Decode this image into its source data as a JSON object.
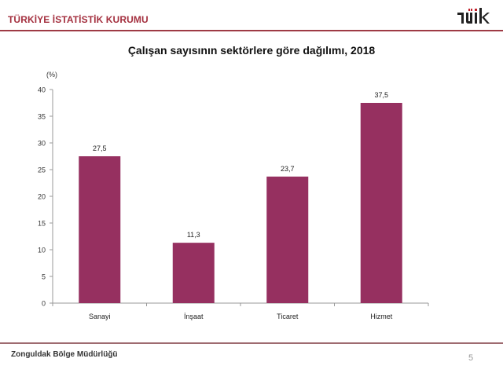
{
  "header": {
    "organization": "TÜRKİYE İSTATİSTİK KURUMU",
    "logo_text": "tüik",
    "accent_color": "#a4303f"
  },
  "footer": {
    "office": "Zonguldak Bölge Müdürlüğü",
    "page_number": "5"
  },
  "chart_data": {
    "type": "bar",
    "title": "Çalışan sayısının sektörlere göre dağılımı, 2018",
    "xlabel": "",
    "ylabel": "(%)",
    "categories": [
      "Sanayi",
      "İnşaat",
      "Ticaret",
      "Hizmet"
    ],
    "values": [
      27.5,
      11.3,
      23.7,
      37.5
    ],
    "value_labels": [
      "27,5",
      "11,3",
      "23,7",
      "37,5"
    ],
    "ylim": [
      0,
      40
    ],
    "yticks": [
      0,
      5,
      10,
      15,
      20,
      25,
      30,
      35,
      40
    ],
    "grid": false,
    "legend": "none",
    "bar_color": "#963060"
  }
}
